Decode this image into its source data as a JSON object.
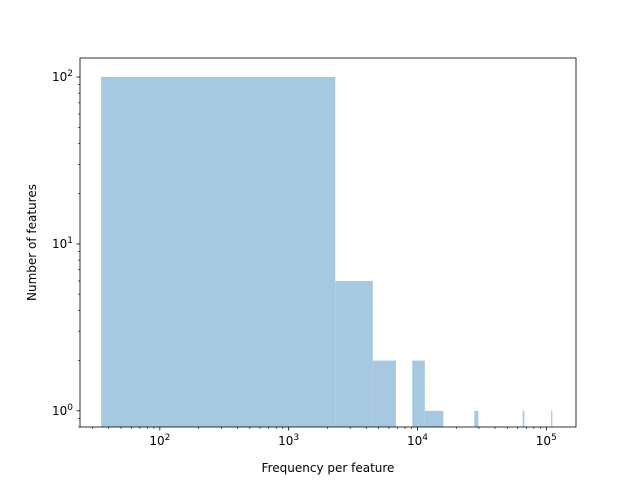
{
  "chart_data": {
    "type": "bar",
    "title": "",
    "xlabel": "Frequency per feature",
    "ylabel": "Number of features",
    "x_scale": "log",
    "y_scale": "log",
    "xlim": [
      24,
      170000
    ],
    "ylim": [
      0.8,
      130
    ],
    "grid": false,
    "bar_color": "#a6c8e0",
    "x_tick_labels": [
      {
        "value": 100,
        "base": "10",
        "exp": "2"
      },
      {
        "value": 1000,
        "base": "10",
        "exp": "3"
      },
      {
        "value": 10000,
        "base": "10",
        "exp": "4"
      },
      {
        "value": 100000,
        "base": "10",
        "exp": "5"
      }
    ],
    "y_tick_labels": [
      {
        "value": 1,
        "base": "10",
        "exp": "0"
      },
      {
        "value": 10,
        "base": "10",
        "exp": "1"
      },
      {
        "value": 100,
        "base": "10",
        "exp": "2"
      }
    ],
    "bins": [
      {
        "x0": 35,
        "x1": 2300,
        "count": 100
      },
      {
        "x0": 2300,
        "x1": 4500,
        "count": 6
      },
      {
        "x0": 4500,
        "x1": 6800,
        "count": 2
      },
      {
        "x0": 9100,
        "x1": 11400,
        "count": 2
      },
      {
        "x0": 11400,
        "x1": 15900,
        "count": 1
      },
      {
        "x0": 27600,
        "x1": 29700,
        "count": 1
      },
      {
        "x0": 65500,
        "x1": 67500,
        "count": 1
      },
      {
        "x0": 109000,
        "x1": 111000,
        "count": 1
      }
    ]
  }
}
